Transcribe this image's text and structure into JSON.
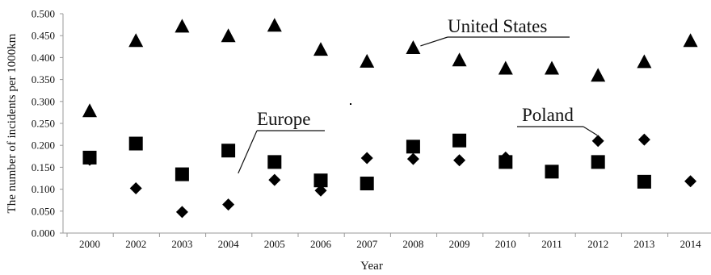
{
  "chart_data": {
    "type": "scatter",
    "title": "",
    "xlabel": "Year",
    "ylabel": "The number of incidents per 1000km",
    "ylim": [
      0,
      0.5
    ],
    "y_ticks": [
      "0.000",
      "0.050",
      "0.100",
      "0.150",
      "0.200",
      "0.250",
      "0.300",
      "0.350",
      "0.400",
      "0.450",
      "0.500"
    ],
    "categories": [
      "2000",
      "2002",
      "2003",
      "2004",
      "2005",
      "2006",
      "2007",
      "2008",
      "2009",
      "2010",
      "2011",
      "2012",
      "2013",
      "2014"
    ],
    "grid": false,
    "legend": "none",
    "series": [
      {
        "name": "United States",
        "marker": "triangle",
        "color": "#000000",
        "values": [
          0.277,
          0.437,
          0.47,
          0.448,
          0.472,
          0.417,
          0.39,
          0.421,
          0.393,
          0.374,
          0.374,
          0.358,
          0.389,
          0.437
        ]
      },
      {
        "name": "Europe",
        "marker": "square",
        "color": "#000000",
        "values": [
          0.172,
          0.204,
          0.134,
          0.188,
          0.162,
          0.12,
          0.113,
          0.197,
          0.211,
          0.162,
          0.14,
          0.162,
          0.117,
          null
        ]
      },
      {
        "name": "Poland",
        "marker": "diamond",
        "color": "#000000",
        "values": [
          0.167,
          0.102,
          0.048,
          0.065,
          0.121,
          0.097,
          0.171,
          0.169,
          0.166,
          0.172,
          null,
          0.21,
          0.213,
          0.118
        ]
      }
    ],
    "annotations": [
      {
        "text": "United States",
        "series": "United States"
      },
      {
        "text": "Europe",
        "series": "Europe"
      },
      {
        "text": "Poland",
        "series": "Poland"
      }
    ]
  }
}
